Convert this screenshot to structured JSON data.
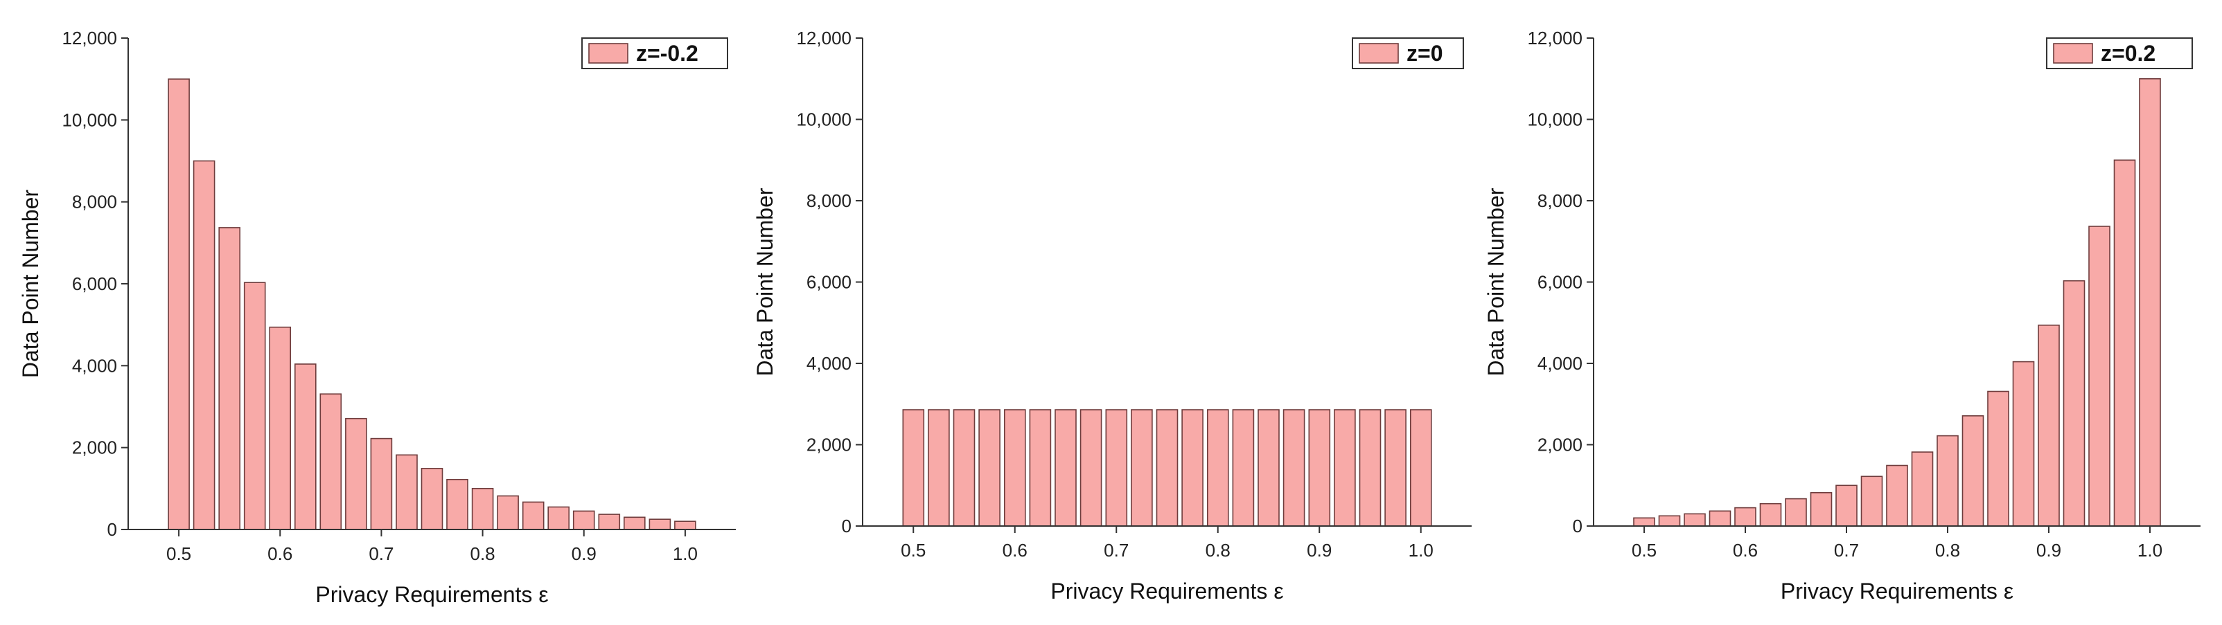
{
  "colors": {
    "bar_fill": "#f8aaa8",
    "bar_stroke": "#6e3c3c",
    "axis": "#333333"
  },
  "chart_data": [
    {
      "type": "bar",
      "x": [
        0.5,
        0.525,
        0.55,
        0.575,
        0.6,
        0.625,
        0.65,
        0.675,
        0.7,
        0.725,
        0.75,
        0.775,
        0.8,
        0.825,
        0.85,
        0.875,
        0.9,
        0.925,
        0.95,
        0.975,
        1.0
      ],
      "series": [
        {
          "name": "z=-0.2",
          "values": [
            11000,
            9000,
            7370,
            6030,
            4940,
            4040,
            3310,
            2710,
            2220,
            1820,
            1490,
            1220,
            1000,
            820,
            670,
            550,
            450,
            370,
            300,
            250,
            200
          ]
        }
      ],
      "xlabel": "Privacy Requirements ε",
      "ylabel": "Data Point Number",
      "xlim": [
        0.45,
        1.05
      ],
      "ylim": [
        0,
        12000
      ],
      "xticks": [
        0.5,
        0.6,
        0.7,
        0.8,
        0.9,
        1.0
      ],
      "xtick_labels": [
        "0.5",
        "0.6",
        "0.7",
        "0.8",
        "0.9",
        "1.0"
      ],
      "yticks": [
        0,
        2000,
        4000,
        6000,
        8000,
        10000,
        12000
      ],
      "ytick_labels": [
        "0",
        "2,000",
        "4,000",
        "6,000",
        "8,000",
        "10,000",
        "12,000"
      ],
      "legend": "top-right",
      "grid": false
    },
    {
      "type": "bar",
      "x": [
        0.5,
        0.525,
        0.55,
        0.575,
        0.6,
        0.625,
        0.65,
        0.675,
        0.7,
        0.725,
        0.75,
        0.775,
        0.8,
        0.825,
        0.85,
        0.875,
        0.9,
        0.925,
        0.95,
        0.975,
        1.0
      ],
      "series": [
        {
          "name": "z=0",
          "values": [
            2860,
            2860,
            2860,
            2860,
            2860,
            2860,
            2860,
            2860,
            2860,
            2860,
            2860,
            2860,
            2860,
            2860,
            2860,
            2860,
            2860,
            2860,
            2860,
            2860,
            2860
          ]
        }
      ],
      "xlabel": "Privacy Requirements ε",
      "ylabel": "Data Point Number",
      "xlim": [
        0.45,
        1.05
      ],
      "ylim": [
        0,
        12000
      ],
      "xticks": [
        0.5,
        0.6,
        0.7,
        0.8,
        0.9,
        1.0
      ],
      "xtick_labels": [
        "0.5",
        "0.6",
        "0.7",
        "0.8",
        "0.9",
        "1.0"
      ],
      "yticks": [
        0,
        2000,
        4000,
        6000,
        8000,
        10000,
        12000
      ],
      "ytick_labels": [
        "0",
        "2,000",
        "4,000",
        "6,000",
        "8,000",
        "10,000",
        "12,000"
      ],
      "legend": "top-right",
      "grid": false
    },
    {
      "type": "bar",
      "x": [
        0.5,
        0.525,
        0.55,
        0.575,
        0.6,
        0.625,
        0.65,
        0.675,
        0.7,
        0.725,
        0.75,
        0.775,
        0.8,
        0.825,
        0.85,
        0.875,
        0.9,
        0.925,
        0.95,
        0.975,
        1.0
      ],
      "series": [
        {
          "name": "z=0.2",
          "values": [
            200,
            250,
            300,
            370,
            450,
            550,
            670,
            820,
            1000,
            1220,
            1490,
            1820,
            2220,
            2710,
            3310,
            4040,
            4940,
            6030,
            7370,
            9000,
            11000
          ]
        }
      ],
      "xlabel": "Privacy Requirements ε",
      "ylabel": "Data Point Number",
      "xlim": [
        0.45,
        1.05
      ],
      "ylim": [
        0,
        12000
      ],
      "xticks": [
        0.5,
        0.6,
        0.7,
        0.8,
        0.9,
        1.0
      ],
      "xtick_labels": [
        "0.5",
        "0.6",
        "0.7",
        "0.8",
        "0.9",
        "1.0"
      ],
      "yticks": [
        0,
        2000,
        4000,
        6000,
        8000,
        10000,
        12000
      ],
      "ytick_labels": [
        "0",
        "2,000",
        "4,000",
        "6,000",
        "8,000",
        "10,000",
        "12,000"
      ],
      "legend": "top-right",
      "grid": false
    }
  ]
}
